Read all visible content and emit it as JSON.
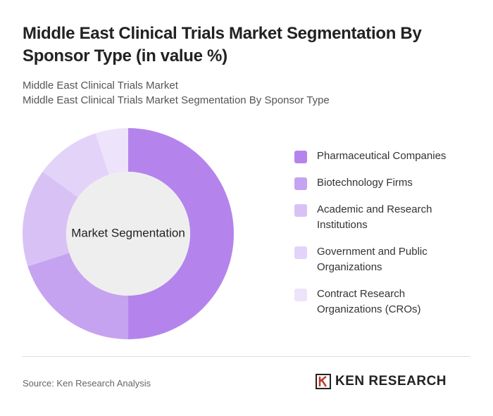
{
  "chart_data": {
    "type": "donut",
    "title": "Middle East Clinical Trials Market Segmentation By Sponsor Type (in value %)",
    "subtitle": [
      "Middle East Clinical Trials Market",
      "Middle East Clinical Trials Market Segmentation By Sponsor Type"
    ],
    "center_label": "Market Segmentation",
    "categories": [
      "Pharmaceutical Companies",
      "Biotechnology Firms",
      "Academic and Research Institutions",
      "Government and Public Organizations",
      "Contract Research Organizations (CROs)"
    ],
    "values": [
      50,
      20,
      15,
      10,
      5
    ],
    "colors": [
      "#b484ec",
      "#c6a3f0",
      "#d8c2f5",
      "#e3d3f8",
      "#ede3fa"
    ],
    "source": "Source: Ken Research Analysis",
    "brand": "KEN RESEARCH"
  }
}
